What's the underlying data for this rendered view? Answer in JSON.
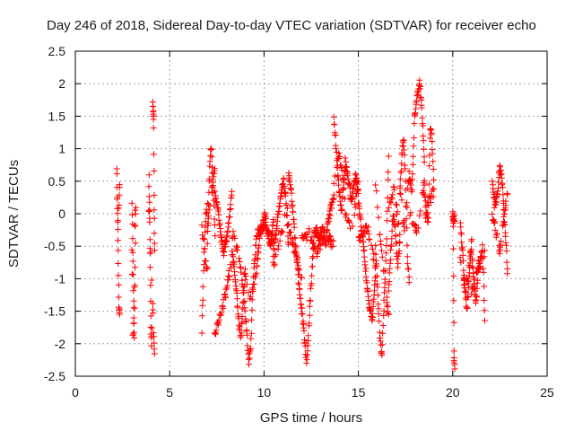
{
  "chart_data": {
    "type": "scatter",
    "title": "Day 246 of 2018, Sidereal Day-to-day VTEC variation (SDTVAR) for receiver echo",
    "xlabel": "GPS time / hours",
    "ylabel": "SDTVAR / TECUs",
    "xlim": [
      0,
      25
    ],
    "ylim": [
      -2.5,
      2.5
    ],
    "xticks": [
      "0",
      "5",
      "10",
      "15",
      "20",
      "25"
    ],
    "yticks": [
      "2.5",
      "2",
      "1.5",
      "1",
      "0.5",
      "0",
      "-0.5",
      "-1",
      "-1.5",
      "-2",
      "-2.5"
    ],
    "grid": true,
    "marker": "+",
    "series_color": "#ff0000",
    "series": [
      {
        "name": "SDTVAR",
        "segments": [
          {
            "x": [
              2.2,
              2.35
            ],
            "y": [
              [
                0.75,
                0.0,
                -0.7,
                -1.45,
                -1.55
              ],
              [
                0.3,
                -0.3,
                0.5
              ]
            ]
          },
          {
            "x": [
              3.0,
              3.2
            ],
            "y": [
              [
                0.2,
                -0.2,
                -0.6,
                -1.0,
                -1.5,
                -2.0,
                -1.2,
                -0.5,
                0.1
              ],
              [
                -0.6,
                -1.9,
                -1.6,
                -0.2,
                0.15
              ]
            ]
          },
          {
            "x": [
              3.9,
              4.05
            ],
            "y": [
              [
                0.55,
                0.2,
                -0.3,
                -0.9,
                -1.7,
                -2.0,
                -1.8
              ],
              [
                0.1,
                -0.5,
                -1.1
              ]
            ]
          },
          {
            "x": [
              4.1,
              4.2
            ],
            "y": [
              [
                1.75,
                1.55,
                1.45,
                0.05,
                -0.55
              ],
              [
                -1.1,
                -1.9,
                -2.2
              ]
            ]
          },
          {
            "x": [
              6.7,
              7.0
            ],
            "y": [
              [
                -1.8,
                -1.2,
                -0.6,
                -0.3,
                0.0,
                0.1
              ],
              [
                -0.2,
                -0.6,
                -0.9
              ]
            ]
          },
          {
            "x": [
              7.0,
              7.4
            ],
            "y": [
              [
                -0.5,
                0.3,
                0.8,
                1.05,
                0.6,
                0.2,
                -0.3
              ],
              [
                -0.2,
                0.3,
                0.7
              ]
            ]
          },
          {
            "x": [
              7.4,
              8.3
            ],
            "y": [
              [
                0.3,
                0.1,
                -0.3,
                -0.6,
                -0.4,
                -0.1,
                0.4
              ],
              [
                -1.9,
                -1.4,
                -0.7
              ]
            ]
          },
          {
            "x": [
              8.3,
              9.0
            ],
            "y": [
              [
                -0.6,
                -0.8,
                -1.2,
                -1.6,
                -1.9,
                -1.4,
                -0.8
              ],
              [
                -0.3,
                -0.6,
                -1.5
              ]
            ]
          },
          {
            "x": [
              9.0,
              9.6
            ],
            "y": [
              [
                -1.5,
                -1.9,
                -2.3,
                -2.0,
                -1.2,
                -0.7,
                -0.3
              ],
              [
                -1.0,
                -1.3,
                -0.9
              ]
            ]
          },
          {
            "x": [
              9.6,
              10.5
            ],
            "y": [
              [
                -0.9,
                -0.4,
                -0.2,
                0.0,
                -0.3,
                -0.5,
                -0.1
              ],
              [
                -0.3,
                -0.2,
                -0.4
              ]
            ]
          },
          {
            "x": [
              10.5,
              11.3
            ],
            "y": [
              [
                -0.6,
                -0.3,
                0.0,
                0.3,
                0.5,
                0.2,
                -0.5
              ],
              [
                -0.8,
                -0.3,
                0.1
              ]
            ]
          },
          {
            "x": [
              11.3,
              12.0
            ],
            "y": [
              [
                0.6,
                0.4,
                0.0,
                -0.4,
                -0.8,
                -1.2,
                -1.5
              ],
              [
                -0.2,
                -0.6,
                -1.0
              ]
            ]
          },
          {
            "x": [
              12.0,
              12.8
            ],
            "y": [
              [
                -1.5,
                -1.9,
                -2.3,
                -1.6,
                -0.9,
                -0.3,
                -0.2
              ],
              [
                -0.4,
                -0.3,
                -0.6
              ]
            ]
          },
          {
            "x": [
              12.8,
              13.7
            ],
            "y": [
              [
                -0.3,
                -0.4,
                -0.2,
                -0.5,
                -0.1,
                0.1,
                0.3
              ],
              [
                -0.6,
                -0.3,
                -0.5
              ]
            ]
          },
          {
            "x": [
              13.7,
              14.3
            ],
            "y": [
              [
                1.5,
                1.1,
                0.6,
                0.3,
                0.0,
                0.4,
                0.7
              ],
              [
                0.5,
                0.9,
                0.2
              ]
            ]
          },
          {
            "x": [
              14.3,
              15.0
            ],
            "y": [
              [
                0.8,
                0.6,
                0.4,
                0.2,
                0.5,
                0.6,
                0.3
              ],
              [
                0.0,
                -0.3,
                0.5
              ]
            ]
          },
          {
            "x": [
              15.0,
              15.9
            ],
            "y": [
              [
                0.2,
                -0.2,
                -0.6,
                -1.1,
                -1.5,
                -1.6,
                -1.0
              ],
              [
                -0.4,
                -0.2,
                -0.8
              ]
            ]
          },
          {
            "x": [
              15.9,
              16.6
            ],
            "y": [
              [
                -0.5,
                -1.1,
                -1.9,
                -2.2,
                -1.3,
                -0.5,
                0.9
              ],
              [
                0.5,
                -0.6,
                -1.6
              ]
            ]
          },
          {
            "x": [
              16.6,
              17.2
            ],
            "y": [
              [
                -1.2,
                -0.6,
                0.0,
                -0.3,
                -0.8,
                -0.4
              ],
              [
                0.1,
                0.4,
                -0.3
              ]
            ]
          },
          {
            "x": [
              17.2,
              17.7
            ],
            "y": [
              [
                0.3,
                0.9,
                1.15,
                0.5,
                -0.7,
                -1.0
              ],
              [
                0.4,
                -0.3,
                0.6
              ]
            ]
          },
          {
            "x": [
              17.7,
              18.5
            ],
            "y": [
              [
                0.6,
                0.3,
                1.45,
                1.8,
                2.05,
                1.6,
                0.8
              ],
              [
                0.0,
                -0.3,
                0.5
              ]
            ]
          },
          {
            "x": [
              18.5,
              19.0
            ],
            "y": [
              [
                0.3,
                0.0,
                -0.2,
                1.3,
                1.15,
                0.4
              ],
              [
                -0.1,
                0.2,
                0.35
              ]
            ]
          },
          {
            "x": [
              20.0,
              20.1
            ],
            "y": [
              [
                0.0,
                -0.1,
                -2.2,
                -2.45
              ],
              [
                -0.05
              ]
            ]
          },
          {
            "x": [
              20.4,
              21.0
            ],
            "y": [
              [
                -0.2,
                -0.6,
                -1.1,
                -1.5,
                -0.9,
                -0.4
              ],
              [
                -0.7,
                -1.2,
                -0.5
              ]
            ]
          },
          {
            "x": [
              21.0,
              21.7
            ],
            "y": [
              [
                -0.6,
                -1.0,
                -1.4,
                -0.9,
                -0.7,
                -0.5,
                -1.6
              ],
              [
                -1.2,
                -0.8,
                -0.6
              ]
            ]
          },
          {
            "x": [
              22.1,
              22.9
            ],
            "y": [
              [
                0.5,
                0.1,
                0.3,
                0.75,
                0.45,
                -0.2,
                -0.9
              ],
              [
                0.0,
                -0.6,
                0.35
              ]
            ]
          }
        ]
      }
    ]
  }
}
